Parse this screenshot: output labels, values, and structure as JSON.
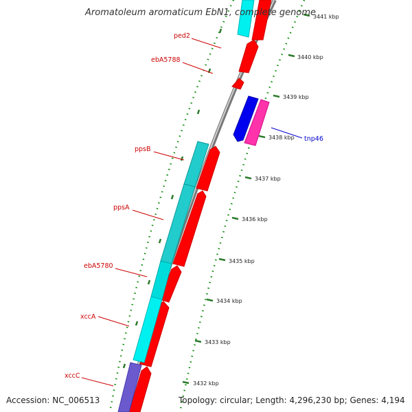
{
  "title": "Aromatoleum aromaticum EbN1, complete genome",
  "accession": "Accession: NC_006513",
  "topology": "Topology: circular; Length: 4,296,230 bp; Genes: 4,194",
  "colors": {
    "forward_cds": "#ff0000",
    "reverse_cds": "#00e5e5",
    "label_red": "#cc0000",
    "label_blue": "#0000cc",
    "tnp_blue": "#0000ee",
    "tnp_pink": "#ff33aa",
    "purple": "#6a5acd",
    "backbone": "#888888",
    "tick_major": "#2a7a2a",
    "tick_minor": "#0a8a0a"
  },
  "ticks": [
    {
      "label": "3432 kbp"
    },
    {
      "label": "3433 kbp"
    },
    {
      "label": "3434 kbp"
    },
    {
      "label": "3435 kbp"
    },
    {
      "label": "3436 kbp"
    },
    {
      "label": "3437 kbp"
    },
    {
      "label": "3438 kbp"
    },
    {
      "label": "3439 kbp"
    },
    {
      "label": "3440 kbp"
    },
    {
      "label": "3441 kbp"
    }
  ],
  "gene_labels": [
    {
      "text": "ped2",
      "color": "red"
    },
    {
      "text": "ebA5788",
      "color": "red"
    },
    {
      "text": "ppsB",
      "color": "red"
    },
    {
      "text": "ppsA",
      "color": "red"
    },
    {
      "text": "ebA5780",
      "color": "red"
    },
    {
      "text": "xccA",
      "color": "red"
    },
    {
      "text": "xccC",
      "color": "red"
    },
    {
      "text": "tnp46",
      "color": "blue"
    }
  ]
}
